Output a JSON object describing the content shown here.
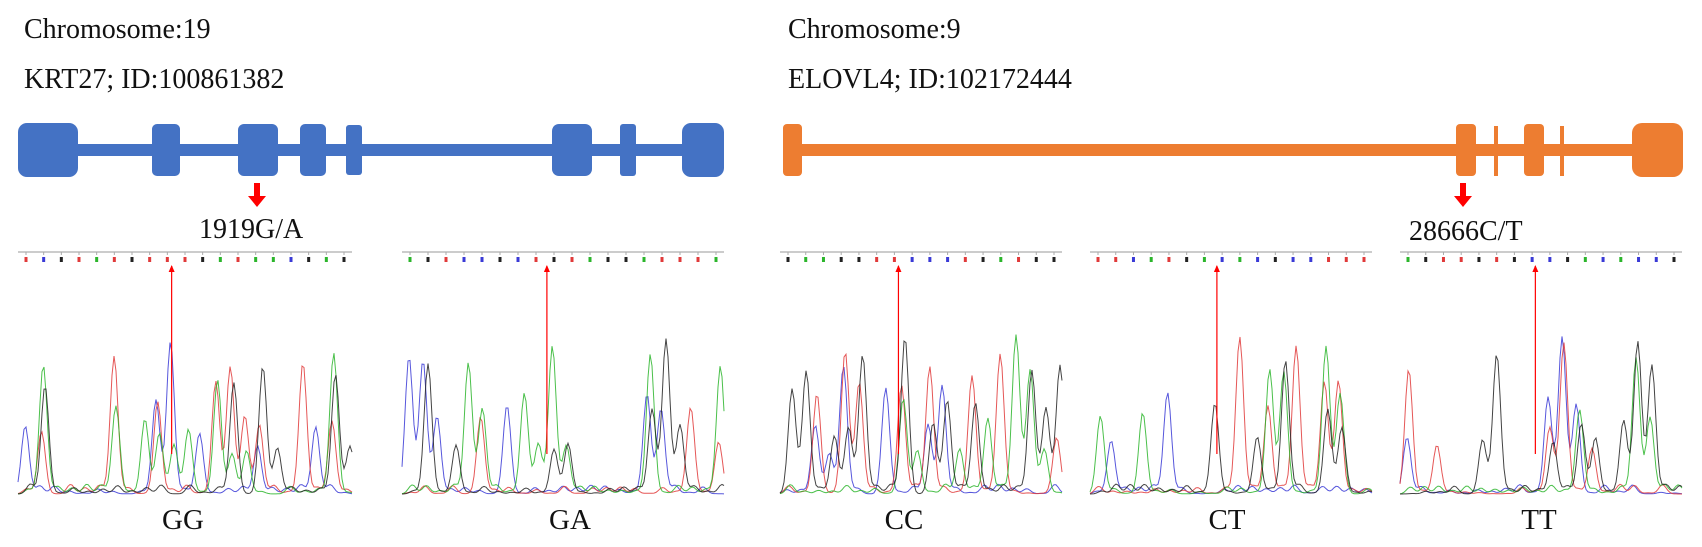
{
  "panels": [
    {
      "chromosome_label": "Chromosome:19",
      "gene_label": "KRT27; ID:100861382",
      "variant_label": "1919G/A",
      "gene_color": "#4472C4",
      "genotypes": [
        "GG",
        "GA"
      ]
    },
    {
      "chromosome_label": "Chromosome:9",
      "gene_label": "ELOVL4; ID:102172444",
      "variant_label": "28666C/T",
      "gene_color": "#ED7D31",
      "genotypes": [
        "CC",
        "CT",
        "TT"
      ]
    }
  ],
  "marker_color": "#FF0000",
  "trace_colors": [
    "#3A3AD6",
    "#E03A3A",
    "#2BB52B",
    "#222222"
  ]
}
